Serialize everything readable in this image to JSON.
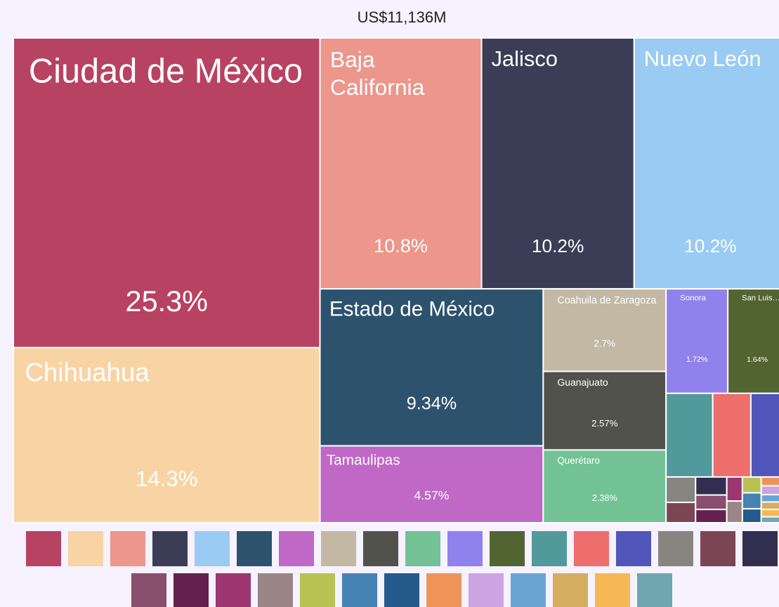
{
  "chart_data": {
    "type": "treemap",
    "title": "US$11,136M",
    "categories": [
      "Ciudad de México",
      "Chihuahua",
      "Baja California",
      "Jalisco",
      "Nuevo León",
      "Estado de México",
      "Tamaulipas",
      "Coahuila de Zaragoza",
      "Guanajuato",
      "Querétaro",
      "Sonora",
      "San Luis…",
      null,
      null,
      null,
      null,
      null,
      null,
      null,
      null,
      null,
      null,
      null,
      null,
      null,
      null,
      null,
      null,
      null,
      null,
      null
    ],
    "values": [
      25.3,
      14.3,
      10.8,
      10.2,
      10.2,
      9.34,
      4.57,
      2.7,
      2.57,
      2.38,
      1.72,
      1.64,
      1.04,
      0.85,
      0.8,
      0.2,
      0.16,
      0.15,
      0.12,
      0.11,
      0.1,
      0.09,
      0.08,
      0.08,
      0.07,
      0.06,
      0.06,
      0.05,
      0.05,
      0.05,
      0.04
    ],
    "value_labels": [
      "25.3%",
      "14.3%",
      "10.8%",
      "10.2%",
      "10.2%",
      "9.34%",
      "4.57%",
      "2.7%",
      "2.57%",
      "2.38%",
      "1.72%",
      "1.64%",
      null,
      null,
      null,
      null,
      null,
      null,
      null,
      null,
      null,
      null,
      null,
      null,
      null,
      null,
      null,
      null,
      null,
      null,
      null
    ],
    "colors": [
      "#b84262",
      "#f8d4a4",
      "#ec968c",
      "#3b3d57",
      "#99cbf3",
      "#2d526e",
      "#c068c6",
      "#c2b8a4",
      "#52524c",
      "#72c295",
      "#9181ec",
      "#536433",
      "#52999b",
      "#ee6e6e",
      "#5056b9",
      "#878580",
      "#7c4553",
      "#312e4f",
      "#8a4e6f",
      "#64214f",
      "#9c3570",
      "#9a8686",
      "#b8c253",
      "#4583b5",
      "#245a8c",
      "#ef9458",
      "#cda4e2",
      "#69a5d4",
      "#d6ad5f",
      "#f6b855",
      "#6fa6b0"
    ]
  }
}
